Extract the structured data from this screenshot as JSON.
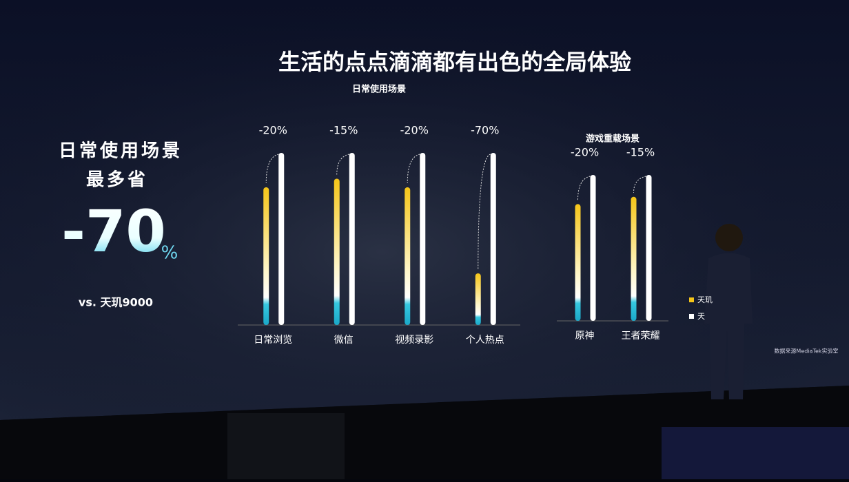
{
  "title": "生活的点点滴滴都有出色的全局体验",
  "headline": {
    "line1": "日常使用场景",
    "line2": "最多省",
    "value": -70,
    "unit": "%",
    "note": "vs. 天玑9000"
  },
  "chart_data": [
    {
      "type": "bar",
      "title": "日常使用场景",
      "categories": [
        "日常浏览",
        "微信",
        "视频录影",
        "个人热点"
      ],
      "values": [
        -20,
        -15,
        -20,
        -70
      ],
      "value_labels": [
        "-20%",
        "-15%",
        "-20%",
        "-70%"
      ]
    },
    {
      "type": "bar",
      "title": "游戏重载场景",
      "categories": [
        "原神",
        "王者荣耀"
      ],
      "values": [
        -20,
        -15
      ],
      "value_labels": [
        "-20%",
        "-15%"
      ]
    }
  ],
  "legend": [
    {
      "name": "天玑",
      "color": "#f5c518"
    },
    {
      "name": "天",
      "color": "#ffffff"
    }
  ],
  "source": "数据来源MediaTek实验室"
}
